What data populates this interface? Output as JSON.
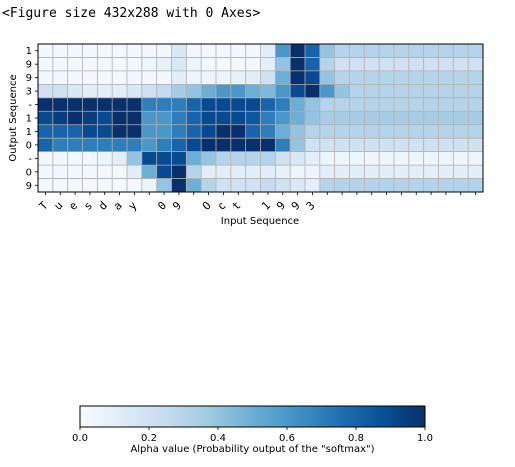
{
  "figure_caption": "<Figure size 432x288 with 0 Axes>",
  "chart_data": {
    "type": "heatmap",
    "xlabel": "Input Sequence",
    "ylabel": "Output Sequence",
    "x_tick_labels": [
      "T",
      "u",
      "e",
      "s",
      "d",
      "a",
      "y",
      "",
      "0",
      "9",
      "",
      "O",
      "c",
      "t",
      "",
      "1",
      "9",
      "9",
      "3",
      "",
      "",
      "",
      "",
      "",
      "",
      "",
      "",
      "",
      "",
      ""
    ],
    "y_tick_labels": [
      "1",
      "9",
      "9",
      "3",
      "-",
      "1",
      "1",
      "0",
      "-",
      "0",
      "9"
    ],
    "value_range": [
      0,
      1
    ],
    "colormap": "Blues",
    "grid": true,
    "values": [
      [
        0.02,
        0.02,
        0.02,
        0.02,
        0.02,
        0.02,
        0.02,
        0.03,
        0.03,
        0.15,
        0.03,
        0.02,
        0.02,
        0.02,
        0.03,
        0.1,
        0.6,
        1.0,
        0.8,
        0.4,
        0.3,
        0.3,
        0.3,
        0.3,
        0.3,
        0.3,
        0.3,
        0.3,
        0.3,
        0.3
      ],
      [
        0.02,
        0.02,
        0.02,
        0.02,
        0.02,
        0.02,
        0.02,
        0.05,
        0.08,
        0.15,
        0.05,
        0.02,
        0.02,
        0.02,
        0.03,
        0.1,
        0.4,
        1.0,
        0.8,
        0.3,
        0.2,
        0.2,
        0.2,
        0.2,
        0.2,
        0.2,
        0.2,
        0.2,
        0.2,
        0.2
      ],
      [
        0.02,
        0.02,
        0.02,
        0.02,
        0.02,
        0.02,
        0.02,
        0.02,
        0.02,
        0.1,
        0.05,
        0.05,
        0.05,
        0.08,
        0.1,
        0.2,
        0.5,
        1.0,
        0.9,
        0.4,
        0.3,
        0.3,
        0.3,
        0.3,
        0.3,
        0.3,
        0.3,
        0.3,
        0.3,
        0.3
      ],
      [
        0.2,
        0.2,
        0.15,
        0.1,
        0.1,
        0.1,
        0.15,
        0.2,
        0.25,
        0.35,
        0.4,
        0.5,
        0.6,
        0.6,
        0.5,
        0.45,
        0.6,
        0.9,
        1.0,
        0.6,
        0.4,
        0.3,
        0.3,
        0.3,
        0.3,
        0.3,
        0.3,
        0.3,
        0.3,
        0.3
      ],
      [
        1.0,
        1.0,
        1.0,
        1.0,
        1.0,
        1.0,
        1.0,
        0.7,
        0.7,
        0.7,
        0.8,
        0.9,
        0.9,
        0.9,
        0.9,
        0.8,
        0.7,
        0.5,
        0.4,
        0.3,
        0.3,
        0.3,
        0.3,
        0.3,
        0.3,
        0.3,
        0.3,
        0.3,
        0.3,
        0.3
      ],
      [
        0.9,
        0.95,
        1.0,
        0.95,
        0.9,
        1.0,
        1.0,
        0.6,
        0.6,
        0.7,
        0.8,
        0.9,
        0.9,
        0.9,
        0.85,
        0.7,
        0.6,
        0.5,
        0.4,
        0.35,
        0.35,
        0.35,
        0.35,
        0.35,
        0.35,
        0.35,
        0.35,
        0.35,
        0.35,
        0.35
      ],
      [
        0.8,
        0.8,
        0.8,
        0.9,
        0.9,
        1.0,
        1.0,
        0.6,
        0.6,
        0.7,
        0.8,
        0.9,
        1.0,
        1.0,
        0.8,
        0.7,
        0.5,
        0.4,
        0.3,
        0.3,
        0.3,
        0.3,
        0.3,
        0.3,
        0.3,
        0.3,
        0.3,
        0.3,
        0.3,
        0.3
      ],
      [
        0.8,
        0.7,
        0.7,
        0.7,
        0.7,
        0.7,
        0.7,
        0.6,
        0.7,
        0.8,
        0.9,
        1.0,
        1.0,
        1.0,
        1.0,
        1.0,
        0.7,
        0.4,
        0.2,
        0.2,
        0.2,
        0.2,
        0.2,
        0.2,
        0.2,
        0.2,
        0.2,
        0.2,
        0.2,
        0.2
      ],
      [
        0.02,
        0.02,
        0.02,
        0.02,
        0.05,
        0.1,
        0.4,
        0.9,
        0.9,
        0.9,
        0.5,
        0.4,
        0.3,
        0.3,
        0.3,
        0.3,
        0.2,
        0.15,
        0.1,
        0.05,
        0.05,
        0.05,
        0.05,
        0.05,
        0.05,
        0.05,
        0.05,
        0.05,
        0.05,
        0.05
      ],
      [
        0.02,
        0.02,
        0.02,
        0.02,
        0.02,
        0.02,
        0.1,
        0.5,
        0.9,
        1.0,
        0.3,
        0.1,
        0.1,
        0.1,
        0.1,
        0.1,
        0.08,
        0.05,
        0.05,
        0.1,
        0.1,
        0.1,
        0.1,
        0.1,
        0.1,
        0.1,
        0.1,
        0.1,
        0.1,
        0.1
      ],
      [
        0.02,
        0.02,
        0.02,
        0.02,
        0.02,
        0.02,
        0.02,
        0.05,
        0.4,
        1.0,
        0.5,
        0.3,
        0.2,
        0.2,
        0.2,
        0.25,
        0.2,
        0.15,
        0.1,
        0.3,
        0.3,
        0.3,
        0.3,
        0.3,
        0.3,
        0.3,
        0.3,
        0.3,
        0.3,
        0.3
      ]
    ]
  },
  "colorbar": {
    "label": "Alpha value (Probability output of the \"softmax\")",
    "tick_values": [
      0.0,
      0.2,
      0.4,
      0.6,
      0.8,
      1.0
    ],
    "tick_labels": [
      "0.0",
      "0.2",
      "0.4",
      "0.6",
      "0.8",
      "1.0"
    ]
  },
  "colors": {
    "low": "#f7fbff",
    "high": "#08306b",
    "grid": "#b0b0b0",
    "axis": "#000000"
  }
}
